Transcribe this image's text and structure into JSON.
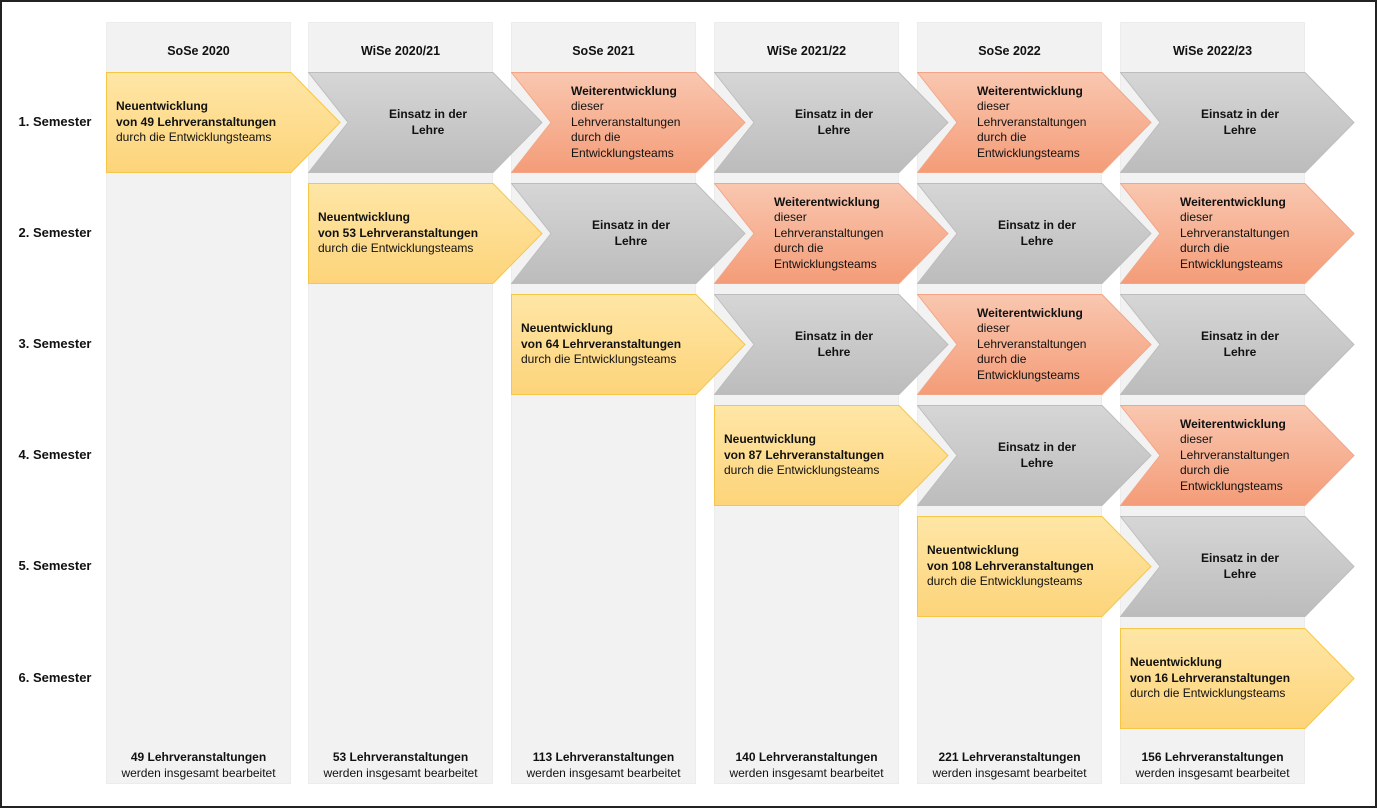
{
  "columns": [
    {
      "header": "SoSe 2020",
      "total_bold": "49 Lehrveranstaltungen",
      "total_sub": "werden insgesamt bearbeitet"
    },
    {
      "header": "WiSe 2020/21",
      "total_bold": "53 Lehrveranstaltungen",
      "total_sub": "werden insgesamt bearbeitet"
    },
    {
      "header": "SoSe 2021",
      "total_bold": "113 Lehrveranstaltungen",
      "total_sub": "werden insgesamt bearbeitet"
    },
    {
      "header": "WiSe 2021/22",
      "total_bold": "140 Lehrveranstaltungen",
      "total_sub": "werden insgesamt bearbeitet"
    },
    {
      "header": "SoSe 2022",
      "total_bold": "221 Lehrveranstaltungen",
      "total_sub": "werden insgesamt bearbeitet"
    },
    {
      "header": "WiSe 2022/23",
      "total_bold": "156 Lehrveranstaltungen",
      "total_sub": "werden insgesamt bearbeitet"
    }
  ],
  "rows": [
    "1. Semester",
    "2. Semester",
    "3. Semester",
    "4. Semester",
    "5. Semester",
    "6. Semester"
  ],
  "colors": {
    "new": "#fdd97f",
    "use": "#c8c8c8",
    "further": "#f6ae8e",
    "column_bg": "#f2f2f2"
  },
  "cells": [
    {
      "row": 0,
      "col": 0,
      "type": "new",
      "bold": [
        "Neuentwicklung",
        "von 49 Lehrveranstaltungen"
      ],
      "normal": [
        "durch die Entwicklungsteams"
      ]
    },
    {
      "row": 0,
      "col": 1,
      "type": "use",
      "bold": [
        "Einsatz in der",
        "Lehre"
      ],
      "normal": []
    },
    {
      "row": 0,
      "col": 2,
      "type": "further",
      "bold": [
        "Weiterentwicklung"
      ],
      "normal": [
        "dieser",
        "Lehrveranstaltungen",
        "durch die",
        "Entwicklungsteams"
      ]
    },
    {
      "row": 0,
      "col": 3,
      "type": "use",
      "bold": [
        "Einsatz in der",
        "Lehre"
      ],
      "normal": []
    },
    {
      "row": 0,
      "col": 4,
      "type": "further",
      "bold": [
        "Weiterentwicklung"
      ],
      "normal": [
        "dieser",
        "Lehrveranstaltungen",
        "durch die",
        "Entwicklungsteams"
      ]
    },
    {
      "row": 0,
      "col": 5,
      "type": "use",
      "bold": [
        "Einsatz in der",
        "Lehre"
      ],
      "normal": []
    },
    {
      "row": 1,
      "col": 1,
      "type": "new",
      "bold": [
        "Neuentwicklung",
        "von 53 Lehrveranstaltungen"
      ],
      "normal": [
        "durch die Entwicklungsteams"
      ]
    },
    {
      "row": 1,
      "col": 2,
      "type": "use",
      "bold": [
        "Einsatz in der",
        "Lehre"
      ],
      "normal": []
    },
    {
      "row": 1,
      "col": 3,
      "type": "further",
      "bold": [
        "Weiterentwicklung"
      ],
      "normal": [
        "dieser",
        "Lehrveranstaltungen",
        "durch die",
        "Entwicklungsteams"
      ]
    },
    {
      "row": 1,
      "col": 4,
      "type": "use",
      "bold": [
        "Einsatz in der",
        "Lehre"
      ],
      "normal": []
    },
    {
      "row": 1,
      "col": 5,
      "type": "further",
      "bold": [
        "Weiterentwicklung"
      ],
      "normal": [
        "dieser",
        "Lehrveranstaltungen",
        "durch die",
        "Entwicklungsteams"
      ]
    },
    {
      "row": 2,
      "col": 2,
      "type": "new",
      "bold": [
        "Neuentwicklung",
        "von 64 Lehrveranstaltungen"
      ],
      "normal": [
        "durch die Entwicklungsteams"
      ]
    },
    {
      "row": 2,
      "col": 3,
      "type": "use",
      "bold": [
        "Einsatz in der",
        "Lehre"
      ],
      "normal": []
    },
    {
      "row": 2,
      "col": 4,
      "type": "further",
      "bold": [
        "Weiterentwicklung"
      ],
      "normal": [
        "dieser",
        "Lehrveranstaltungen",
        "durch die",
        "Entwicklungsteams"
      ]
    },
    {
      "row": 2,
      "col": 5,
      "type": "use",
      "bold": [
        "Einsatz in der",
        "Lehre"
      ],
      "normal": []
    },
    {
      "row": 3,
      "col": 3,
      "type": "new",
      "bold": [
        "Neuentwicklung",
        "von 87 Lehrveranstaltungen"
      ],
      "normal": [
        "durch die Entwicklungsteams"
      ]
    },
    {
      "row": 3,
      "col": 4,
      "type": "use",
      "bold": [
        "Einsatz in der",
        "Lehre"
      ],
      "normal": []
    },
    {
      "row": 3,
      "col": 5,
      "type": "further",
      "bold": [
        "Weiterentwicklung"
      ],
      "normal": [
        "dieser",
        "Lehrveranstaltungen",
        "durch die",
        "Entwicklungsteams"
      ]
    },
    {
      "row": 4,
      "col": 4,
      "type": "new",
      "bold": [
        "Neuentwicklung",
        "von 108 Lehrveranstaltungen"
      ],
      "normal": [
        "durch die Entwicklungsteams"
      ]
    },
    {
      "row": 4,
      "col": 5,
      "type": "use",
      "bold": [
        "Einsatz in der",
        "Lehre"
      ],
      "normal": []
    },
    {
      "row": 5,
      "col": 5,
      "type": "new",
      "bold": [
        "Neuentwicklung",
        "von 16 Lehrveranstaltungen"
      ],
      "normal": [
        "durch die Entwicklungsteams"
      ]
    }
  ]
}
